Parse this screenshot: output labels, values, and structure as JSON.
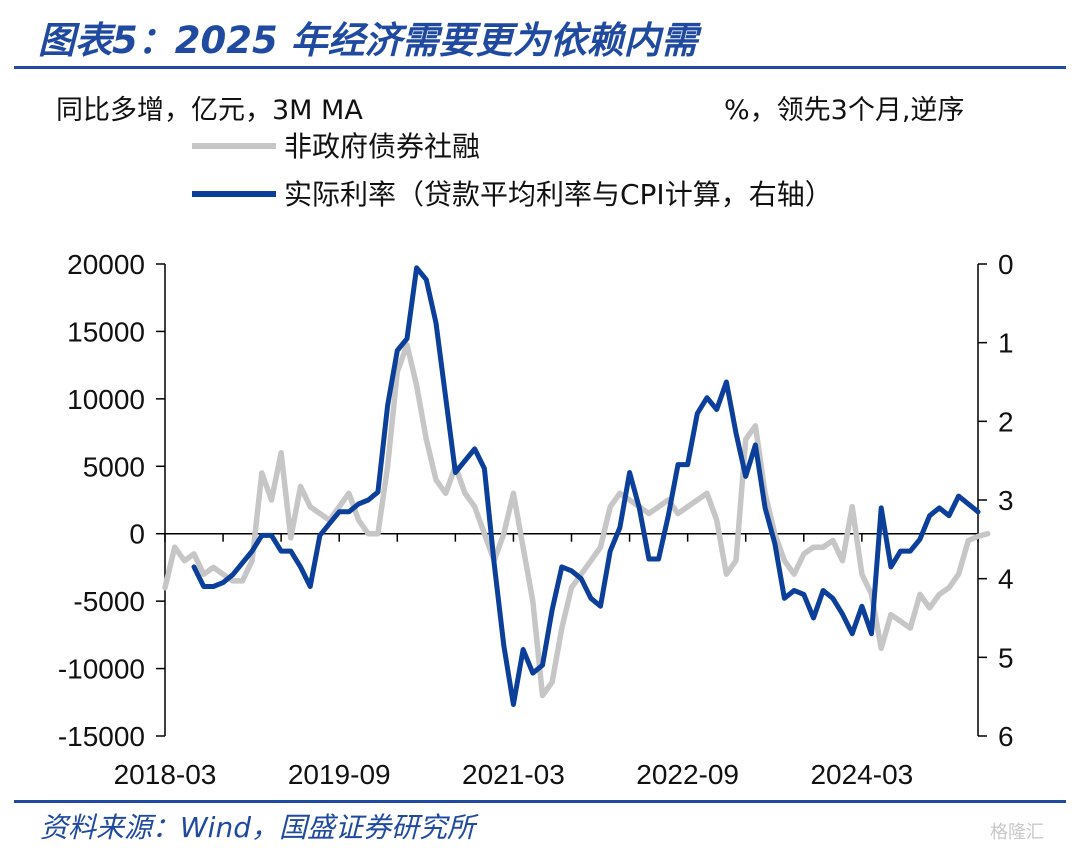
{
  "header": {
    "title": "图表5：2025 年经济需要更为依赖内需"
  },
  "footer": {
    "source": "资料来源：Wind，国盛证券研究所",
    "watermark": "格隆汇"
  },
  "colors": {
    "accent": "#1f4aa0",
    "series_gray": "#c6c6c6",
    "series_blue": "#0b3f99"
  },
  "chart_data": {
    "type": "line",
    "left_axis_note": "同比多增，亿元，3M MA",
    "right_axis_note": "%，领先3个月,逆序",
    "x_tick_labels": [
      "2018-03",
      "2019-09",
      "2021-03",
      "2022-09",
      "2024-03"
    ],
    "y_left": {
      "ticks": [
        20000,
        15000,
        10000,
        5000,
        0,
        -5000,
        -10000,
        -15000
      ],
      "lim": [
        -15000,
        20000
      ]
    },
    "y_right": {
      "ticks": [
        0,
        1,
        2,
        3,
        4,
        5,
        6
      ],
      "lim": [
        0,
        6
      ],
      "inverted": true
    },
    "grid": false,
    "legend_position": "top-left",
    "series": [
      {
        "name": "非政府债券社融",
        "axis": "left",
        "start": "2018-03",
        "values": [
          -4000,
          -1000,
          -2000,
          -1500,
          -3000,
          -2500,
          -3000,
          -3500,
          -3500,
          -2000,
          4500,
          2500,
          6000,
          -300,
          3500,
          2000,
          1500,
          1000,
          2000,
          3000,
          1000,
          0,
          0,
          5000,
          12000,
          14000,
          11000,
          7000,
          4000,
          3000,
          5000,
          3000,
          2000,
          0,
          -2000,
          0,
          3000,
          -1000,
          -5000,
          -12000,
          -11000,
          -7000,
          -4000,
          -3000,
          -2000,
          -1000,
          2000,
          3000,
          2500,
          2000,
          1500,
          2000,
          2500,
          1500,
          2000,
          2500,
          3000,
          1000,
          -3000,
          -2000,
          7000,
          8000,
          3000,
          0,
          -2000,
          -3000,
          -1500,
          -1000,
          -1000,
          -500,
          -2000,
          2000,
          -3000,
          -4500,
          -8500,
          -6000,
          -6500,
          -7000,
          -4500,
          -5500,
          -4500,
          -4000,
          -3000,
          -500,
          -200,
          0
        ]
      },
      {
        "name": "实际利率（贷款平均利率与CPI计算，右轴）",
        "axis": "right",
        "start": "2018-06",
        "values": [
          3.85,
          4.1,
          4.1,
          4.05,
          3.95,
          3.8,
          3.65,
          3.45,
          3.45,
          3.65,
          3.65,
          3.85,
          4.1,
          3.45,
          3.3,
          3.15,
          3.15,
          3.05,
          3.0,
          2.9,
          1.8,
          1.1,
          0.95,
          0.05,
          0.2,
          0.75,
          1.7,
          2.65,
          2.5,
          2.35,
          2.6,
          3.8,
          4.85,
          5.6,
          4.9,
          5.2,
          5.1,
          4.4,
          3.85,
          3.9,
          4.0,
          4.25,
          4.35,
          3.65,
          3.35,
          2.65,
          3.1,
          3.75,
          3.75,
          3.2,
          2.55,
          2.55,
          1.9,
          1.7,
          1.85,
          1.5,
          2.15,
          2.7,
          2.3,
          3.1,
          3.55,
          4.25,
          4.15,
          4.2,
          4.5,
          4.15,
          4.25,
          4.45,
          4.7,
          4.35,
          4.7,
          3.1,
          3.85,
          3.65,
          3.65,
          3.5,
          3.2,
          3.1,
          3.2,
          2.95,
          3.05,
          3.15
        ]
      }
    ]
  }
}
